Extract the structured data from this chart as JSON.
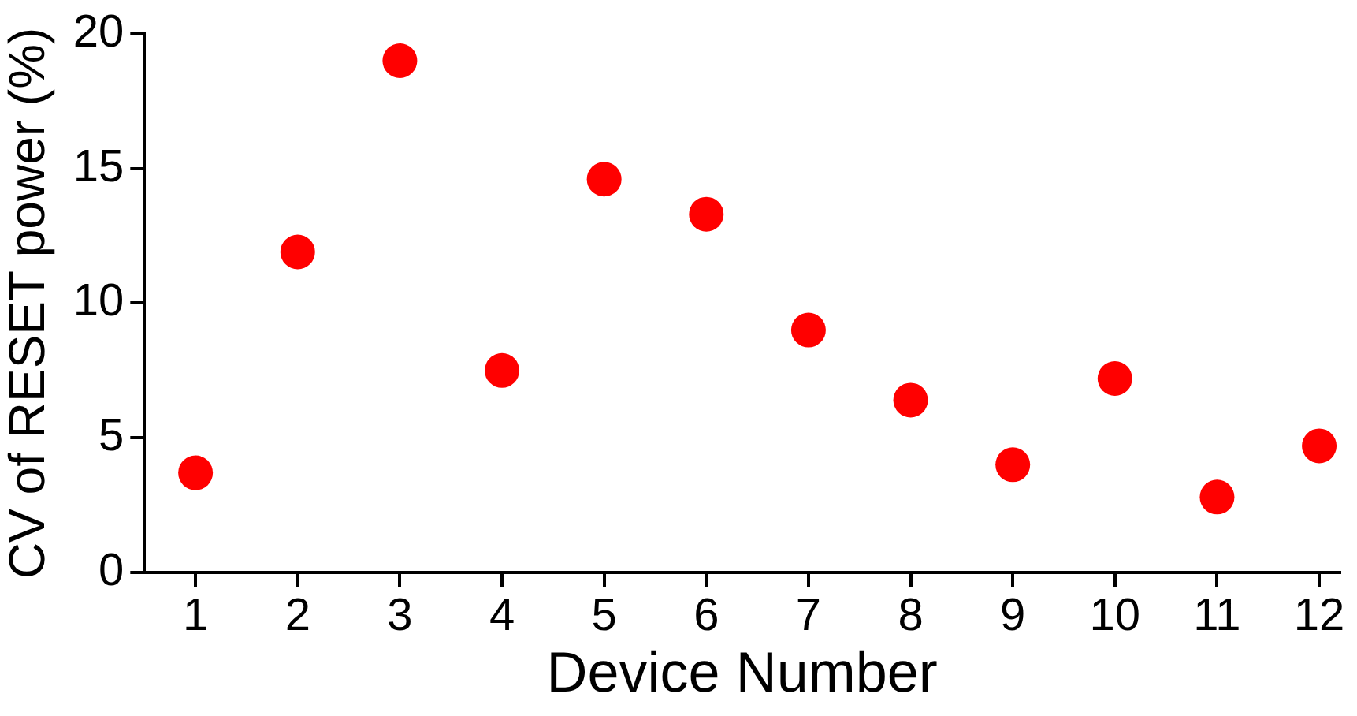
{
  "chart_data": {
    "type": "scatter",
    "xlabel": "Device Number",
    "ylabel": "CV of RESET power (%)",
    "x": [
      1,
      2,
      3,
      4,
      5,
      6,
      7,
      8,
      9,
      10,
      11,
      12
    ],
    "series": [
      {
        "color": "#ff0000",
        "values": [
          3.7,
          11.9,
          19.0,
          7.5,
          14.6,
          13.3,
          9.0,
          6.4,
          4.0,
          7.2,
          2.8,
          4.7
        ]
      }
    ],
    "xlim": [
      0.5,
      12.2
    ],
    "xticks": [
      1,
      2,
      3,
      4,
      5,
      6,
      7,
      8,
      9,
      10,
      11,
      12
    ],
    "ylim": [
      0,
      20
    ],
    "yticks": [
      0,
      5,
      10,
      15,
      20
    ],
    "marker": "circle"
  }
}
